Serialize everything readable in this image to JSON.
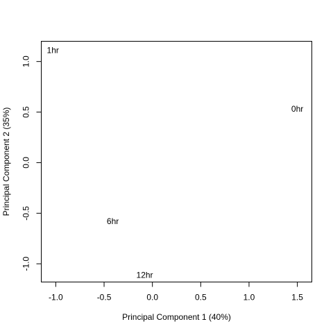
{
  "chart_data": {
    "type": "scatter",
    "title": "",
    "xlabel": "Principal Component 1 (40%)",
    "ylabel": "Principal Component 2 (35%)",
    "xlim": [
      -1.15,
      1.65
    ],
    "ylim": [
      -1.18,
      1.2
    ],
    "xticks": [
      -1.0,
      -0.5,
      0.0,
      0.5,
      1.0,
      1.5
    ],
    "xtick_labels": [
      "-1.0",
      "-0.5",
      "0.0",
      "0.5",
      "1.0",
      "1.5"
    ],
    "yticks": [
      -1.0,
      -0.5,
      0.0,
      0.5,
      1.0
    ],
    "ytick_labels": [
      "-1.0",
      "-0.5",
      "0.0",
      "0.5",
      "1.0"
    ],
    "grid": false,
    "marker": "text-label",
    "points": [
      {
        "label": "0hr",
        "x": 1.5,
        "y": 0.53
      },
      {
        "label": "1hr",
        "x": -1.03,
        "y": 1.11
      },
      {
        "label": "6hr",
        "x": -0.41,
        "y": -0.58
      },
      {
        "label": "12hr",
        "x": -0.08,
        "y": -1.11
      }
    ]
  }
}
